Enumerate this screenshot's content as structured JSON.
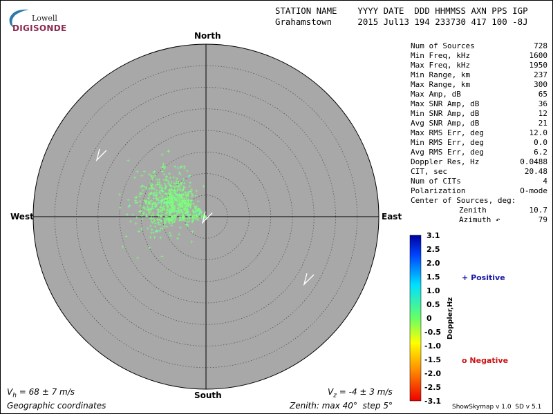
{
  "logo": {
    "line1": "Lowell",
    "line2": "DIGISONDE"
  },
  "header": {
    "line1": "STATION NAME    YYYY DATE  DDD HHMMSS AXN PPS IGP",
    "line2": "Grahamstown     2015 Jul13 194 233730 417 100 -8J"
  },
  "stats": [
    {
      "k": "Num of Sources",
      "v": "728"
    },
    {
      "k": "Min Freq, kHz",
      "v": "1600"
    },
    {
      "k": "Max Freq, kHz",
      "v": "1950"
    },
    {
      "k": "Min Range, km",
      "v": "237"
    },
    {
      "k": "Max Range, km",
      "v": "300"
    },
    {
      "k": "Max Amp, dB",
      "v": "65"
    },
    {
      "k": "Max SNR Amp, dB",
      "v": "36"
    },
    {
      "k": "Min SNR Amp, dB",
      "v": "12"
    },
    {
      "k": "Avg SNR Amp, dB",
      "v": "21"
    },
    {
      "k": "Max RMS Err, deg",
      "v": "12.0"
    },
    {
      "k": "Min RMS Err, deg",
      "v": "0.0"
    },
    {
      "k": "Avg RMS Err, deg",
      "v": "6.2"
    },
    {
      "k": "Doppler Res, Hz",
      "v": "0.0488"
    },
    {
      "k": "CIT, sec",
      "v": "20.48"
    },
    {
      "k": "Num of CITs",
      "v": "4"
    },
    {
      "k": "Polarization",
      "v": "O-mode"
    },
    {
      "k": "Center of Sources, deg:",
      "v": ""
    },
    {
      "k": "Zenith",
      "v": "10.7"
    },
    {
      "k": "Azimuth ↶",
      "v": "79"
    }
  ],
  "compass": {
    "north": "North",
    "south": "South",
    "east": "East",
    "west": "West"
  },
  "colorbar": {
    "title": "Doppler,Hz",
    "ticks": [
      "3.1",
      "2.5",
      "2.0",
      "1.5",
      "1.0",
      "0.5",
      "0",
      "-0.5",
      "-1.0",
      "-1.5",
      "-2.0",
      "-2.5",
      "-3.1"
    ]
  },
  "legend": {
    "positive": "Positive",
    "negative": "Negative",
    "positive_symbol": "+",
    "negative_symbol": "o"
  },
  "bottom": {
    "vh": "V",
    "vh_sub": "h",
    "vh_value": " = 68 ± 7 m/s",
    "vz": "V",
    "vz_sub": "z",
    "vz_value": " = -4 ± 3 m/s",
    "coords": "Geographic coordinates",
    "zenith": "Zenith: max 40°  step 5°",
    "version": "ShowSkymap v 1.0  SD v 5.1"
  },
  "chart_data": {
    "type": "scatter",
    "projection": "polar sky map",
    "zenith_max_deg": 40,
    "zenith_step_deg": 5,
    "num_points": 728,
    "cluster": {
      "description_only": false,
      "center_zenith_deg": 10.7,
      "center_azimuth_deg": 79
    },
    "colors": {
      "background": "#a8a8a8",
      "positive_marker": "#7dff7d",
      "alt_marker": "#66ffcc"
    },
    "velocity_vectors": [
      {
        "zenith_deg": 28,
        "azimuth_deg": 301,
        "name": ""
      },
      {
        "zenith_deg": 0.5,
        "azimuth_deg": 100,
        "name": ""
      },
      {
        "zenith_deg": 28,
        "azimuth_deg": 121,
        "name": ""
      }
    ]
  }
}
